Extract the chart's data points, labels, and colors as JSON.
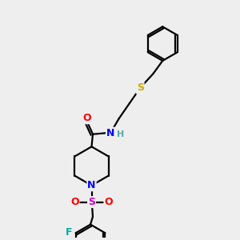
{
  "background_color": "#eeeeee",
  "bond_color": "#000000",
  "atom_colors": {
    "O": "#ff0000",
    "N": "#0000ff",
    "S_thio": "#ccaa00",
    "S_sulfonyl": "#cc00cc",
    "F": "#00aaaa",
    "H": "#55aaaa",
    "C": "#000000"
  },
  "figsize": [
    3.0,
    3.0
  ],
  "dpi": 100
}
